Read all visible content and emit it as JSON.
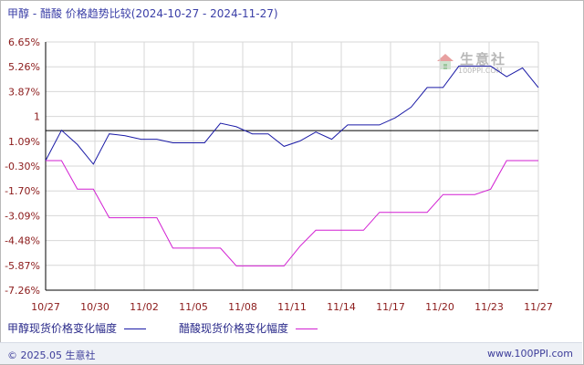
{
  "title": {
    "main": "甲醇 - 醋酸 价格趋势比较",
    "range": "(2024-10-27 - 2024-11-27)"
  },
  "logo": {
    "brand": "生意社",
    "url": "100PPI.COM"
  },
  "footer": {
    "copyright": "© 2025.05 生意社",
    "site": "www.100PPI.com"
  },
  "colors": {
    "series1": "#1a1aa6",
    "series2": "#d21fd2",
    "axis": "#000000",
    "grid": "#d7d7d7",
    "tick_text": "#8b1a1a"
  },
  "chart_data": {
    "type": "line",
    "title": "甲醇 - 醋酸 价格趋势比较",
    "x_tick_labels": [
      "10/27",
      "10/30",
      "11/02",
      "11/05",
      "11/08",
      "11/11",
      "11/14",
      "11/17",
      "11/20",
      "11/23",
      "11/27"
    ],
    "y_tick_labels": [
      "6.65%",
      "5.26%",
      "3.87%",
      "1",
      "1.09%",
      "-0.30%",
      "-1.70%",
      "-3.09%",
      "-4.48%",
      "-5.87%",
      "-7.26%"
    ],
    "ylim": [
      -7.26,
      6.65
    ],
    "zero_line": 1.68,
    "grid": true,
    "legend_position": "bottom-left",
    "series": [
      {
        "name": "甲醇现货价格变化幅度",
        "x": [
          "10/27",
          "10/28",
          "10/29",
          "10/30",
          "10/31",
          "11/01",
          "11/02",
          "11/03",
          "11/04",
          "11/05",
          "11/06",
          "11/07",
          "11/08",
          "11/09",
          "11/10",
          "11/11",
          "11/12",
          "11/13",
          "11/14",
          "11/15",
          "11/16",
          "11/17",
          "11/18",
          "11/19",
          "11/20",
          "11/21",
          "11/22",
          "11/23",
          "11/24",
          "11/25",
          "11/26",
          "11/27"
        ],
        "values": [
          0.0,
          1.7,
          0.9,
          -0.2,
          1.5,
          1.4,
          1.2,
          1.2,
          1.0,
          1.0,
          1.0,
          2.1,
          1.9,
          1.5,
          1.5,
          0.8,
          1.1,
          1.6,
          1.2,
          2.0,
          2.0,
          2.0,
          2.4,
          3.0,
          4.1,
          4.1,
          5.3,
          5.3,
          5.3,
          4.7,
          5.2,
          4.1
        ]
      },
      {
        "name": "醋酸现货价格变化幅度",
        "x": [
          "10/27",
          "10/28",
          "10/29",
          "10/30",
          "10/31",
          "11/01",
          "11/02",
          "11/03",
          "11/04",
          "11/05",
          "11/06",
          "11/07",
          "11/08",
          "11/09",
          "11/10",
          "11/11",
          "11/12",
          "11/13",
          "11/14",
          "11/15",
          "11/16",
          "11/17",
          "11/18",
          "11/19",
          "11/20",
          "11/21",
          "11/22",
          "11/23",
          "11/24",
          "11/25",
          "11/26",
          "11/27"
        ],
        "values": [
          0.0,
          0.0,
          -1.6,
          -1.6,
          -3.2,
          -3.2,
          -3.2,
          -3.2,
          -4.9,
          -4.9,
          -4.9,
          -4.9,
          -5.9,
          -5.9,
          -5.9,
          -5.9,
          -4.8,
          -3.9,
          -3.9,
          -3.9,
          -3.9,
          -2.9,
          -2.9,
          -2.9,
          -2.9,
          -1.9,
          -1.9,
          -1.9,
          -1.6,
          0.0,
          0.0,
          0.0
        ]
      }
    ]
  },
  "legend": {
    "series1_label": "甲醇现货价格变化幅度",
    "series2_label": "醋酸现货价格变化幅度"
  }
}
